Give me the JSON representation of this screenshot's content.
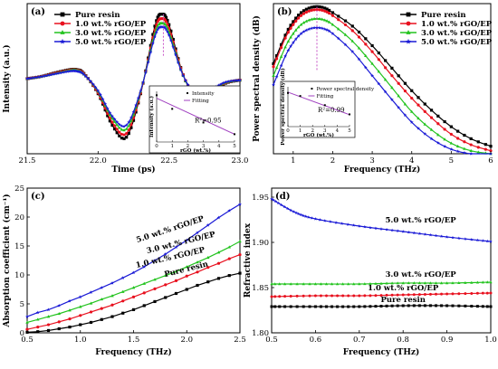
{
  "colors": {
    "pure": "#000000",
    "rgo1": "#e8101e",
    "rgo3": "#22c31e",
    "rgo5": "#1a1ad6",
    "fit": "#a040c0",
    "marker": "#c040c0"
  },
  "series_names": [
    "Pure resin",
    "1.0 wt.% rGO/EP",
    "3.0 wt.% rGO/EP",
    "5.0 wt.% rGO/EP"
  ],
  "chart_data": [
    {
      "panel_label": "(a)",
      "type": "line",
      "xlabel": "Time (ps)",
      "ylabel": "Intensity (a.u.)",
      "xlim": [
        21.5,
        23.0
      ],
      "ylim": [
        -1.0,
        1.0
      ],
      "xticks": [
        "21.5",
        "22.0",
        "22.5",
        "23.0"
      ],
      "legend_position": "top-left",
      "peak_marker_x": 22.46,
      "series": [
        {
          "name": "Pure resin",
          "amplitude": 1.0,
          "x": [
            21.5,
            21.6,
            21.7,
            21.8,
            21.85,
            21.9,
            22.0,
            22.1,
            22.2,
            22.3,
            22.4,
            22.45,
            22.5,
            22.6,
            22.7,
            22.8,
            22.9,
            23.0
          ],
          "y": [
            0.0,
            0.03,
            0.08,
            0.12,
            0.12,
            0.07,
            -0.2,
            -0.62,
            -0.78,
            -0.2,
            0.7,
            0.86,
            0.72,
            0.05,
            -0.28,
            -0.18,
            -0.06,
            -0.02
          ]
        },
        {
          "name": "1.0 wt.% rGO/EP",
          "amplitude": 0.93,
          "x": [
            21.5,
            21.6,
            21.7,
            21.8,
            21.85,
            21.9,
            22.0,
            22.1,
            22.2,
            22.3,
            22.4,
            22.45,
            22.5,
            22.6,
            22.7,
            22.8,
            22.9,
            23.0
          ],
          "y": [
            0.0,
            0.03,
            0.075,
            0.115,
            0.115,
            0.065,
            -0.19,
            -0.58,
            -0.73,
            -0.19,
            0.65,
            0.8,
            0.67,
            0.05,
            -0.26,
            -0.17,
            -0.055,
            -0.02
          ]
        },
        {
          "name": "3.0 wt.% rGO/EP",
          "amplitude": 0.86,
          "x": [
            21.5,
            21.6,
            21.7,
            21.8,
            21.85,
            21.9,
            22.0,
            22.1,
            22.2,
            22.3,
            22.4,
            22.45,
            22.5,
            22.6,
            22.7,
            22.8,
            22.9,
            23.0
          ],
          "y": [
            0.0,
            0.03,
            0.07,
            0.11,
            0.11,
            0.06,
            -0.17,
            -0.53,
            -0.67,
            -0.17,
            0.6,
            0.74,
            0.62,
            0.04,
            -0.24,
            -0.15,
            -0.05,
            -0.02
          ]
        },
        {
          "name": "5.0 wt.% rGO/EP",
          "amplitude": 0.8,
          "x": [
            21.5,
            21.6,
            21.7,
            21.8,
            21.85,
            21.9,
            22.0,
            22.1,
            22.2,
            22.3,
            22.4,
            22.45,
            22.5,
            22.6,
            22.7,
            22.8,
            22.9,
            23.0
          ],
          "y": [
            0.0,
            0.028,
            0.065,
            0.1,
            0.1,
            0.055,
            -0.16,
            -0.5,
            -0.62,
            -0.16,
            0.56,
            0.69,
            0.58,
            0.04,
            -0.22,
            -0.14,
            -0.045,
            -0.02
          ]
        }
      ],
      "inset": {
        "xlabel": "rGO (wt.%)",
        "ylabel": "Intensity (a.u.)",
        "xticks": [
          "0",
          "1",
          "2",
          "3",
          "4",
          "5"
        ],
        "legend": [
          "Intensity",
          "Fitting"
        ],
        "r2": "R²=0.95",
        "points": {
          "x": [
            0,
            1,
            3,
            5
          ],
          "y": [
            1.0,
            0.93,
            0.86,
            0.8
          ]
        },
        "fit": {
          "x": [
            0,
            5
          ],
          "y": [
            0.985,
            0.8
          ]
        }
      }
    },
    {
      "panel_label": "(b)",
      "type": "line",
      "xlabel": "Frequency (THz)",
      "ylabel": "Power spectral density (dB)",
      "xlim": [
        0.5,
        6.0
      ],
      "ylim": [
        0,
        1.0
      ],
      "xticks": [
        "1",
        "2",
        "3",
        "4",
        "5",
        "6"
      ],
      "legend_position": "top-right",
      "peak_marker_x": 1.6,
      "series": [
        {
          "name": "Pure resin",
          "x": [
            0.5,
            0.8,
            1.0,
            1.2,
            1.4,
            1.6,
            1.8,
            2.0,
            2.5,
            3.0,
            3.5,
            4.0,
            4.5,
            5.0,
            5.5,
            6.0
          ],
          "y": [
            0.6,
            0.79,
            0.88,
            0.94,
            0.97,
            0.98,
            0.97,
            0.94,
            0.85,
            0.72,
            0.57,
            0.42,
            0.29,
            0.18,
            0.1,
            0.05
          ]
        },
        {
          "name": "1.0 wt.% rGO/EP",
          "x": [
            0.5,
            0.8,
            1.0,
            1.2,
            1.4,
            1.6,
            1.8,
            2.0,
            2.5,
            3.0,
            3.5,
            4.0,
            4.5,
            5.0,
            5.5,
            6.0
          ],
          "y": [
            0.58,
            0.77,
            0.86,
            0.92,
            0.95,
            0.96,
            0.95,
            0.92,
            0.82,
            0.68,
            0.52,
            0.37,
            0.24,
            0.13,
            0.06,
            0.02
          ]
        },
        {
          "name": "3.0 wt.% rGO/EP",
          "x": [
            0.5,
            0.8,
            1.0,
            1.2,
            1.4,
            1.6,
            1.8,
            2.0,
            2.5,
            3.0,
            3.5,
            4.0,
            4.5,
            5.0,
            5.5,
            6.0
          ],
          "y": [
            0.52,
            0.71,
            0.8,
            0.86,
            0.89,
            0.9,
            0.89,
            0.86,
            0.75,
            0.6,
            0.44,
            0.28,
            0.16,
            0.07,
            0.02,
            0.0
          ]
        },
        {
          "name": "5.0 wt.% rGO/EP",
          "x": [
            0.5,
            0.8,
            1.0,
            1.2,
            1.4,
            1.6,
            1.8,
            2.0,
            2.5,
            3.0,
            3.5,
            4.0,
            4.5,
            5.0,
            5.5,
            6.0
          ],
          "y": [
            0.46,
            0.65,
            0.74,
            0.8,
            0.83,
            0.84,
            0.83,
            0.8,
            0.68,
            0.52,
            0.36,
            0.21,
            0.1,
            0.03,
            0.0,
            0.0
          ]
        }
      ],
      "inset": {
        "xlabel": "rGO (wt.%)",
        "ylabel": "Power spectral density (dB)",
        "xticks": [
          "0",
          "1",
          "2",
          "3",
          "4",
          "5"
        ],
        "legend": [
          "Power spectral density",
          "Fitting"
        ],
        "r2": "R²=0.99",
        "points": {
          "x": [
            0,
            1,
            3,
            5
          ],
          "y": [
            0.98,
            0.96,
            0.9,
            0.84
          ]
        },
        "fit": {
          "x": [
            0,
            5
          ],
          "y": [
            0.985,
            0.838
          ]
        }
      }
    },
    {
      "panel_label": "(c)",
      "type": "line",
      "xlabel": "Frequency (THz)",
      "ylabel": "Absorption coefficient (cm⁻¹)",
      "xlim": [
        0.5,
        2.5
      ],
      "ylim": [
        0,
        25
      ],
      "xticks": [
        "0.5",
        "1.0",
        "1.5",
        "2.0",
        "2.5"
      ],
      "yticks": [
        "0",
        "5",
        "10",
        "15",
        "20",
        "25"
      ],
      "series": [
        {
          "name": "Pure resin",
          "x": [
            0.5,
            0.6,
            0.7,
            0.8,
            0.9,
            1.0,
            1.1,
            1.2,
            1.3,
            1.4,
            1.5,
            1.6,
            1.7,
            1.8,
            1.9,
            2.0,
            2.1,
            2.2,
            2.3,
            2.4,
            2.5
          ],
          "y": [
            0.1,
            0.2,
            0.4,
            0.7,
            1.0,
            1.4,
            1.8,
            2.3,
            2.8,
            3.4,
            4.0,
            4.7,
            5.4,
            6.1,
            6.8,
            7.5,
            8.2,
            8.8,
            9.4,
            9.9,
            10.3
          ]
        },
        {
          "name": "1.0 wt.% rGO/EP",
          "x": [
            0.5,
            0.6,
            0.7,
            0.8,
            0.9,
            1.0,
            1.1,
            1.2,
            1.3,
            1.4,
            1.5,
            1.6,
            1.7,
            1.8,
            1.9,
            2.0,
            2.1,
            2.2,
            2.3,
            2.4,
            2.5
          ],
          "y": [
            0.6,
            1.0,
            1.4,
            1.9,
            2.4,
            3.0,
            3.6,
            4.2,
            4.8,
            5.5,
            6.2,
            6.9,
            7.6,
            8.3,
            9.0,
            9.8,
            10.5,
            11.3,
            12.0,
            12.8,
            13.5
          ]
        },
        {
          "name": "3.0 wt.% rGO/EP",
          "x": [
            0.5,
            0.6,
            0.7,
            0.8,
            0.9,
            1.0,
            1.1,
            1.2,
            1.3,
            1.4,
            1.5,
            1.6,
            1.7,
            1.8,
            1.9,
            2.0,
            2.1,
            2.2,
            2.3,
            2.4,
            2.5
          ],
          "y": [
            1.8,
            2.3,
            2.8,
            3.3,
            3.9,
            4.5,
            5.1,
            5.8,
            6.4,
            7.1,
            7.8,
            8.5,
            9.2,
            9.9,
            10.6,
            11.4,
            12.2,
            13.0,
            13.9,
            14.8,
            15.8
          ]
        },
        {
          "name": "5.0 wt.% rGO/EP",
          "x": [
            0.5,
            0.6,
            0.7,
            0.8,
            0.9,
            1.0,
            1.1,
            1.2,
            1.3,
            1.4,
            1.5,
            1.6,
            1.7,
            1.8,
            1.9,
            2.0,
            2.1,
            2.2,
            2.3,
            2.4,
            2.5
          ],
          "y": [
            2.8,
            3.5,
            4.0,
            4.7,
            5.5,
            6.2,
            7.0,
            7.8,
            8.6,
            9.5,
            10.4,
            11.4,
            12.5,
            13.6,
            14.8,
            16.0,
            17.3,
            18.6,
            19.9,
            21.1,
            22.2
          ]
        }
      ]
    },
    {
      "panel_label": "(d)",
      "type": "line",
      "xlabel": "Frequency (THz)",
      "ylabel": "Refractive index",
      "xlim": [
        0.5,
        1.0
      ],
      "ylim": [
        1.8,
        1.96
      ],
      "xticks": [
        "0.5",
        "0.6",
        "0.7",
        "0.8",
        "0.9",
        "1.0"
      ],
      "yticks": [
        "1.80",
        "1.85",
        "1.90",
        "1.95"
      ],
      "series": [
        {
          "name": "Pure resin",
          "x": [
            0.5,
            0.6,
            0.7,
            0.8,
            0.9,
            1.0
          ],
          "y": [
            1.829,
            1.829,
            1.829,
            1.83,
            1.83,
            1.829
          ]
        },
        {
          "name": "1.0 wt.% rGO/EP",
          "x": [
            0.5,
            0.6,
            0.7,
            0.8,
            0.9,
            1.0
          ],
          "y": [
            1.84,
            1.841,
            1.841,
            1.842,
            1.843,
            1.844
          ]
        },
        {
          "name": "3.0 wt.% rGO/EP",
          "x": [
            0.5,
            0.6,
            0.7,
            0.8,
            0.9,
            1.0
          ],
          "y": [
            1.854,
            1.854,
            1.854,
            1.855,
            1.855,
            1.856
          ]
        },
        {
          "name": "5.0 wt.% rGO/EP",
          "x": [
            0.5,
            0.55,
            0.6,
            0.7,
            0.8,
            0.9,
            1.0
          ],
          "y": [
            1.948,
            1.934,
            1.926,
            1.918,
            1.912,
            1.906,
            1.901
          ]
        }
      ]
    }
  ]
}
